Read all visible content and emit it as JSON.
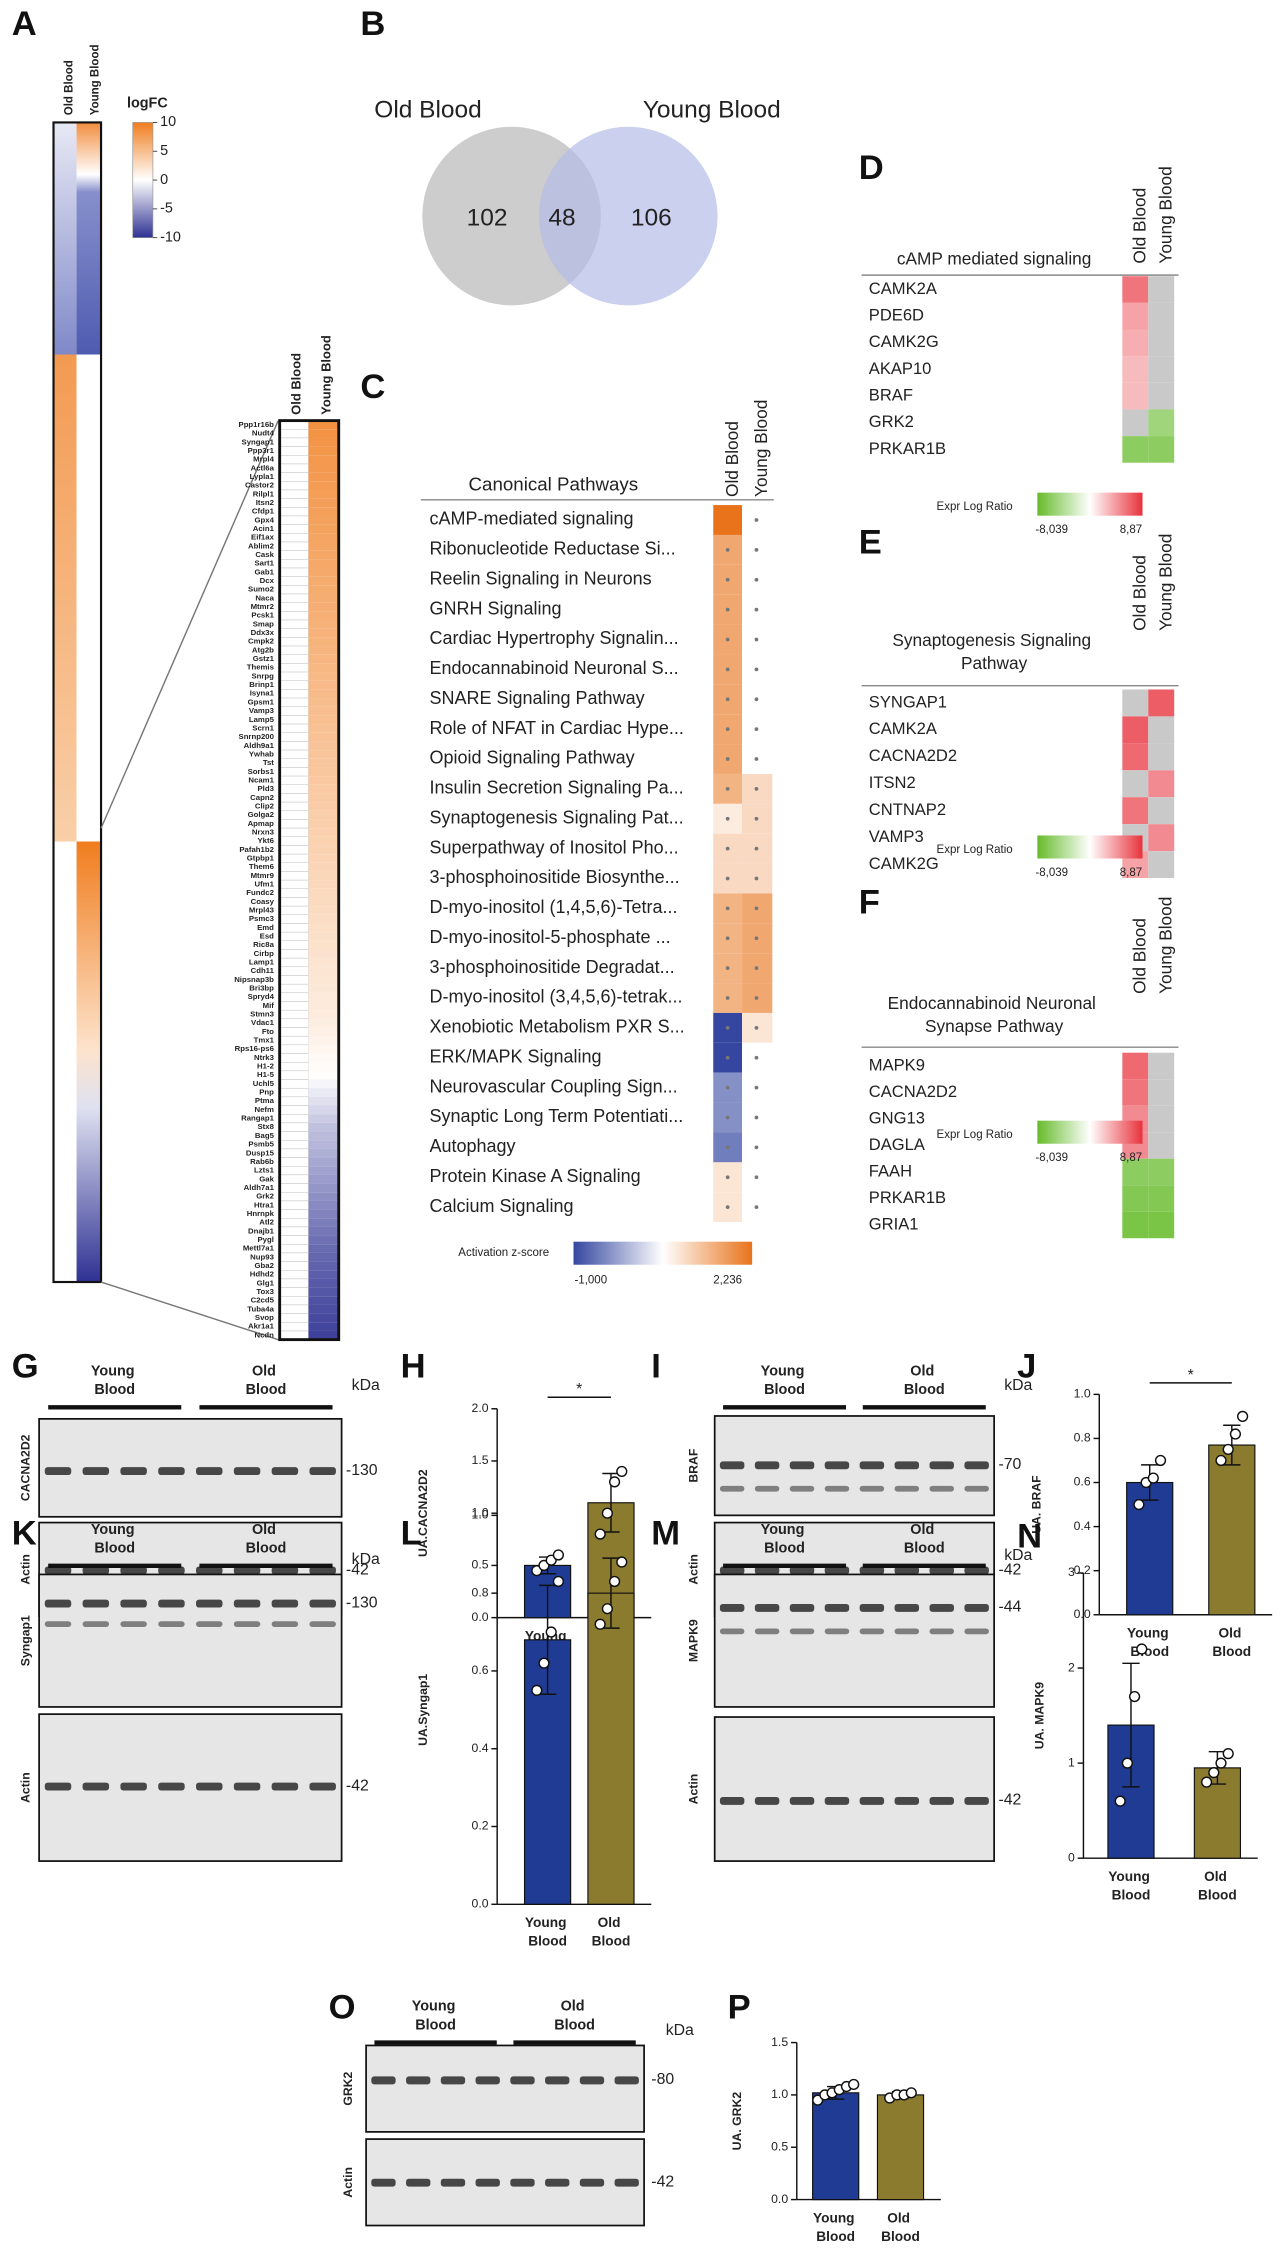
{
  "panel_labels": {
    "A": "A",
    "B": "B",
    "C": "C",
    "D": "D",
    "E": "E",
    "F": "F",
    "G": "G",
    "I": "I",
    "K": "K",
    "M": "M",
    "O": "O"
  },
  "heatmap_a": {
    "legend_title": "logFC",
    "legend_ticks": [
      10,
      5,
      0,
      -5,
      -10
    ],
    "clim": [
      -10,
      10
    ],
    "colors": [
      "#2e3192",
      "#ffffff",
      "#f07d1e"
    ],
    "genes": [
      "Ppp1r16b",
      "Nudt4",
      "Syngap1",
      "Ppp3r1",
      "Mrpl4",
      "Actl6a",
      "Lypla1",
      "Castor2",
      "Rilpl1",
      "Itsn2",
      "Cfdp1",
      "Gpx4",
      "Acin1",
      "Eif1ax",
      "Ablim2",
      "Cask",
      "Sart1",
      "Gab1",
      "Dcx",
      "Sumo2",
      "Naca",
      "Mtmr2",
      "Pcsk1",
      "Smap",
      "Ddx3x",
      "Cmpk2",
      "Atg2b",
      "Gstz1",
      "Themis",
      "Snrpg",
      "Brinp1",
      "Isyna1",
      "Gpsm1",
      "Vamp3",
      "Lamp5",
      "Scrn1",
      "Snrnp200",
      "Aldh9a1",
      "Ywhab",
      "Tst",
      "Sorbs1",
      "Ncam1",
      "Pld3",
      "Capn2",
      "Clip2",
      "Golga2",
      "Apmap",
      "Nrxn3",
      "Ykt6",
      "Pafah1b2",
      "Gtpbp1",
      "Them6",
      "Mtmr9",
      "Ufm1",
      "Fundc2",
      "Coasy",
      "Mrpl43",
      "Psmc3",
      "Emd",
      "Esd",
      "Ric8a",
      "Cirbp",
      "Lamp1",
      "Cdh11",
      "Nipsnap3b",
      "Bri3bp",
      "Spryd4",
      "Mif",
      "Stmn3",
      "Vdac1",
      "Fto",
      "Tmx1",
      "Rps16-ps6",
      "Ntrk3",
      "H1-2",
      "H1-5",
      "Uchl5",
      "Pnp",
      "Ptma",
      "Nefm",
      "Rangap1",
      "Stx8",
      "Bag5",
      "Psmb5",
      "Dusp15",
      "Rab6b",
      "Lzts1",
      "Gak",
      "Aldh7a1",
      "Grk2",
      "Htra1",
      "Hnrnpk",
      "Atl2",
      "Dnajb1",
      "Pygl",
      "Mettl7a1",
      "Nup93",
      "Gba2",
      "Hdhd2",
      "Glg1",
      "Tox3",
      "C2cd5",
      "Tuba4a",
      "Svop",
      "Akr1a1",
      "Ncdn"
    ],
    "series": [
      {
        "name": "Old Blood",
        "values": [
          0,
          0,
          0,
          0,
          0,
          0,
          0,
          0,
          0,
          0,
          0,
          0,
          0,
          0,
          0,
          0,
          0,
          0,
          0,
          0,
          0,
          0,
          0,
          0,
          0,
          0,
          0,
          0,
          0,
          0,
          0,
          0,
          0,
          0,
          0,
          0,
          0,
          0,
          0,
          0,
          0,
          0,
          0,
          0,
          0,
          0,
          0,
          0,
          0,
          0,
          0,
          0,
          0,
          0,
          0,
          0,
          0,
          0,
          0,
          0,
          0,
          0,
          0,
          0,
          0,
          0,
          0,
          0,
          0,
          0,
          0,
          0,
          0,
          0,
          0,
          0,
          0,
          0,
          0,
          0,
          0,
          0,
          0,
          0,
          0,
          0,
          0,
          0,
          0,
          0,
          0,
          0,
          0,
          0,
          0,
          0,
          0,
          0,
          0,
          0,
          0,
          0,
          0,
          0,
          0,
          0
        ]
      },
      {
        "name": "Young Blood",
        "values": [
          8.5,
          8.3,
          8.1,
          8,
          7.9,
          7.8,
          7.7,
          7.6,
          7.5,
          7.4,
          7.3,
          7.2,
          7.1,
          7,
          6.9,
          6.8,
          6.7,
          6.6,
          6.5,
          6.4,
          6.3,
          6.2,
          6.1,
          6,
          5.9,
          5.8,
          5.7,
          5.6,
          5.5,
          5.4,
          5.3,
          5.2,
          5.1,
          5,
          4.9,
          4.8,
          4.7,
          4.6,
          4.5,
          4.4,
          4.3,
          4.2,
          4.1,
          4,
          3.9,
          3.8,
          3.7,
          3.6,
          3.5,
          3.4,
          3.3,
          3.2,
          3.1,
          3,
          2.9,
          2.8,
          2.7,
          2.6,
          2.5,
          2.4,
          2.3,
          2.2,
          2.1,
          2,
          1.9,
          1.8,
          1.7,
          1.6,
          1.5,
          1.3,
          1.1,
          0.9,
          0.7,
          0.5,
          0.3,
          0.1,
          -0.5,
          -1,
          -1.5,
          -2,
          -2.5,
          -3,
          -3.3,
          -3.6,
          -3.9,
          -4.2,
          -4.5,
          -4.8,
          -5.1,
          -5.4,
          -5.7,
          -6,
          -6.3,
          -6.6,
          -6.9,
          -7.2,
          -7.4,
          -7.6,
          -7.8,
          -8,
          -8.2,
          -8.4,
          -8.6,
          -8.8,
          -9,
          -9.2
        ]
      }
    ]
  },
  "venn": {
    "sets": [
      {
        "name": "Old Blood",
        "color": "#c4c4c4",
        "text_color": "#777777"
      },
      {
        "name": "Young Blood",
        "color": "#b3bce6",
        "text_color": "#4a5aa8"
      }
    ],
    "counts": [
      102,
      48,
      106
    ]
  },
  "pathways": {
    "title": "Canonical Pathways",
    "rows": [
      "cAMP-mediated signaling",
      "Ribonucleotide Reductase Si...",
      "Reelin Signaling in Neurons",
      "GNRH Signaling",
      "Cardiac Hypertrophy Signalin...",
      "Endocannabinoid Neuronal S...",
      "SNARE Signaling Pathway",
      "Role of NFAT in Cardiac Hype...",
      "Opioid Signaling Pathway",
      "Insulin Secretion Signaling Pa...",
      "Synaptogenesis Signaling Pat...",
      "Superpathway of Inositol Pho...",
      "3-phosphoinositide Biosynthe...",
      "D-myo-inositol (1,4,5,6)-Tetra...",
      "D-myo-inositol-5-phosphate ...",
      "3-phosphoinositide Degradat...",
      "D-myo-inositol (3,4,5,6)-tetrak...",
      "Xenobiotic Metabolism PXR S...",
      "ERK/MAPK Signaling",
      "Neurovascular Coupling Sign...",
      "Synaptic Long Term Potentiati...",
      "Autophagy",
      "Protein Kinase A Signaling",
      "Calcium Signaling"
    ],
    "series": [
      {
        "name": "Old Blood",
        "values": [
          2.236,
          1.4,
          1.4,
          1.4,
          1.4,
          1.4,
          1.4,
          1.4,
          1.4,
          1.2,
          0.3,
          0.6,
          0.6,
          1.2,
          1.2,
          1.2,
          1.2,
          -1,
          -1,
          -0.6,
          -0.6,
          -0.7,
          0.4,
          0.4
        ]
      },
      {
        "name": "Young Blood",
        "values": [
          0,
          0,
          0,
          0,
          0,
          0,
          0,
          0,
          0,
          0.6,
          0.6,
          0.6,
          0.6,
          1.4,
          1.4,
          1.4,
          1.4,
          0.4,
          0,
          0,
          0,
          0,
          0,
          0
        ]
      }
    ],
    "legend": {
      "title": "Activation z-score",
      "min": {
        "value": -1,
        "label": "-1,000"
      },
      "max": {
        "value": 2.236,
        "label": "2,236"
      }
    },
    "colors": [
      "#3446a0",
      "#ffffff",
      "#e8731a"
    ]
  },
  "gene_tables": [
    {
      "title": "cAMP mediated signaling",
      "genes": [
        "CAMK2A",
        "PDE6D",
        "CAMK2G",
        "AKAP10",
        "BRAF",
        "GRK2",
        "PRKAR1B"
      ],
      "series": [
        {
          "name": "Old Blood",
          "values": [
            6,
            4,
            3.5,
            3,
            3,
            null,
            -6
          ]
        },
        {
          "name": "Young Blood",
          "values": [
            null,
            null,
            null,
            null,
            null,
            -5,
            -6
          ]
        }
      ],
      "legend": {
        "title": "Expr Log Ratio",
        "min": {
          "value": -8.039,
          "label": "-8,039"
        },
        "max": {
          "value": 8.87,
          "label": "8,87"
        }
      },
      "colors": [
        "#66bb2a",
        "#ffffff",
        "#e8323c"
      ]
    },
    {
      "title": "Synaptogenesis Signaling Pathway",
      "genes": [
        "SYNGAP1",
        "CAMK2A",
        "CACNA2D2",
        "ITSN2",
        "CNTNAP2",
        "VAMP3",
        "CAMK2G"
      ],
      "series": [
        {
          "name": "Old Blood",
          "values": [
            null,
            7,
            6.5,
            null,
            6,
            null,
            4
          ]
        },
        {
          "name": "Young Blood",
          "values": [
            7,
            null,
            null,
            5,
            null,
            5,
            null
          ]
        }
      ],
      "legend": {
        "title": "Expr Log Ratio",
        "min": {
          "value": -8.039,
          "label": "-8,039"
        },
        "max": {
          "value": 8.87,
          "label": "8,87"
        }
      },
      "colors": [
        "#66bb2a",
        "#ffffff",
        "#e8323c"
      ]
    },
    {
      "title": "Endocannabinoid Neuronal Synapse Pathway",
      "genes": [
        "MAPK9",
        "CACNA2D2",
        "GNG13",
        "DAGLA",
        "FAAH",
        "PRKAR1B",
        "GRIA1"
      ],
      "series": [
        {
          "name": "Old Blood",
          "values": [
            6.5,
            6,
            5,
            5,
            -6,
            -6.5,
            -7
          ]
        },
        {
          "name": "Young Blood",
          "values": [
            null,
            null,
            null,
            null,
            -6,
            -6.5,
            -7
          ]
        }
      ],
      "legend": {
        "title": "Expr Log Ratio",
        "min": {
          "value": -8.039,
          "label": "-8,039"
        },
        "max": {
          "value": 8.87,
          "label": "8,87"
        }
      },
      "colors": [
        "#66bb2a",
        "#ffffff",
        "#e8323c"
      ]
    }
  ],
  "blots": [
    {
      "groups": [
        "Young Blood",
        "Old Blood"
      ],
      "unit": "kDa",
      "proteins": [
        {
          "name": "CACNA2D2",
          "marker": "-130"
        },
        {
          "name": "Actin",
          "marker": "-42"
        }
      ]
    },
    {
      "groups": [
        "Young Blood",
        "Old Blood"
      ],
      "unit": "kDa",
      "proteins": [
        {
          "name": "BRAF",
          "marker": "-70"
        },
        {
          "name": "Actin",
          "marker": "-42"
        }
      ]
    },
    {
      "groups": [
        "Young Blood",
        "Old Blood"
      ],
      "unit": "kDa",
      "proteins": [
        {
          "name": "Syngap1",
          "marker": "-130"
        },
        {
          "name": "Actin",
          "marker": "-42"
        }
      ]
    },
    {
      "groups": [
        "Young Blood",
        "Old Blood"
      ],
      "unit": "kDa",
      "proteins": [
        {
          "name": "MAPK9",
          "marker": "-44"
        },
        {
          "name": "Actin",
          "marker": "-42"
        }
      ]
    },
    {
      "groups": [
        "Young Blood",
        "Old Blood"
      ],
      "unit": "kDa",
      "proteins": [
        {
          "name": "GRK2",
          "marker": "-80"
        },
        {
          "name": "Actin",
          "marker": "-42"
        }
      ]
    }
  ],
  "chart_data": [
    {
      "type": "bar",
      "panel": "H",
      "ylabel": "UA.CACNA2D2",
      "categories": [
        "Young Blood",
        "Old Blood"
      ],
      "colors": [
        "#1f3b94",
        "#8b7b2e"
      ],
      "values": [
        0.5,
        1.1
      ],
      "errors": [
        0.08,
        0.28
      ],
      "points": [
        [
          0.45,
          0.5,
          0.55,
          0.6
        ],
        [
          0.8,
          1.0,
          1.3,
          1.4
        ]
      ],
      "ylim": [
        0,
        2
      ],
      "yticks": [
        {
          "value": 0,
          "label": "0.0"
        },
        {
          "value": 0.5,
          "label": "0.5"
        },
        {
          "value": 1,
          "label": "1.0"
        },
        {
          "value": 1.5,
          "label": "1.5"
        },
        {
          "value": 2,
          "label": "2.0"
        }
      ],
      "significance": "*"
    },
    {
      "type": "bar",
      "panel": "J",
      "ylabel": "UA. BRAF",
      "categories": [
        "Young Blood",
        "Old Blood"
      ],
      "colors": [
        "#1f3b94",
        "#8b7b2e"
      ],
      "values": [
        0.6,
        0.77
      ],
      "errors": [
        0.08,
        0.09
      ],
      "points": [
        [
          0.5,
          0.6,
          0.62,
          0.7
        ],
        [
          0.7,
          0.75,
          0.82,
          0.9
        ]
      ],
      "ylim": [
        0,
        1
      ],
      "yticks": [
        {
          "value": 0,
          "label": "0.0"
        },
        0.2,
        0.4,
        0.6,
        0.8,
        {
          "value": 1,
          "label": "1.0"
        }
      ],
      "significance": "*"
    },
    {
      "type": "bar",
      "panel": "L",
      "ylabel": "UA.Syngap1",
      "categories": [
        "Young Blood",
        "Old Blood"
      ],
      "colors": [
        "#1f3b94",
        "#8b7b2e"
      ],
      "values": [
        0.68,
        0.8
      ],
      "errors": [
        0.14,
        0.09
      ],
      "points": [
        [
          0.55,
          0.62,
          0.7,
          0.83
        ],
        [
          0.72,
          0.76,
          0.83,
          0.88
        ]
      ],
      "ylim": [
        0,
        1
      ],
      "yticks": [
        {
          "value": 0,
          "label": "0.0"
        },
        0.2,
        0.4,
        0.6,
        0.8,
        {
          "value": 1,
          "label": "1.0"
        }
      ]
    },
    {
      "type": "bar",
      "panel": "N",
      "ylabel": "UA. MAPK9",
      "categories": [
        "Young Blood",
        "Old Blood"
      ],
      "colors": [
        "#1f3b94",
        "#8b7b2e"
      ],
      "values": [
        1.4,
        0.95
      ],
      "errors": [
        0.65,
        0.17
      ],
      "points": [
        [
          0.6,
          1.0,
          1.7,
          2.2
        ],
        [
          0.8,
          0.9,
          1.0,
          1.1
        ]
      ],
      "ylim": [
        0,
        3
      ],
      "yticks": [
        0,
        1,
        2,
        3
      ]
    },
    {
      "type": "bar",
      "panel": "P",
      "ylabel": "UA. GRK2",
      "categories": [
        "Young Blood",
        "Old Blood"
      ],
      "colors": [
        "#1f3b94",
        "#8b7b2e"
      ],
      "values": [
        1.02,
        1.0
      ],
      "errors": [
        0.06,
        0.03
      ],
      "points": [
        [
          0.95,
          1.0,
          1.02,
          1.05,
          1.08,
          1.1
        ],
        [
          0.97,
          1.0,
          1.0,
          1.02
        ]
      ],
      "ylim": [
        0,
        1.5
      ],
      "yticks": [
        {
          "value": 0,
          "label": "0.0"
        },
        0.5,
        {
          "value": 1,
          "label": "1.0"
        },
        1.5
      ]
    }
  ]
}
